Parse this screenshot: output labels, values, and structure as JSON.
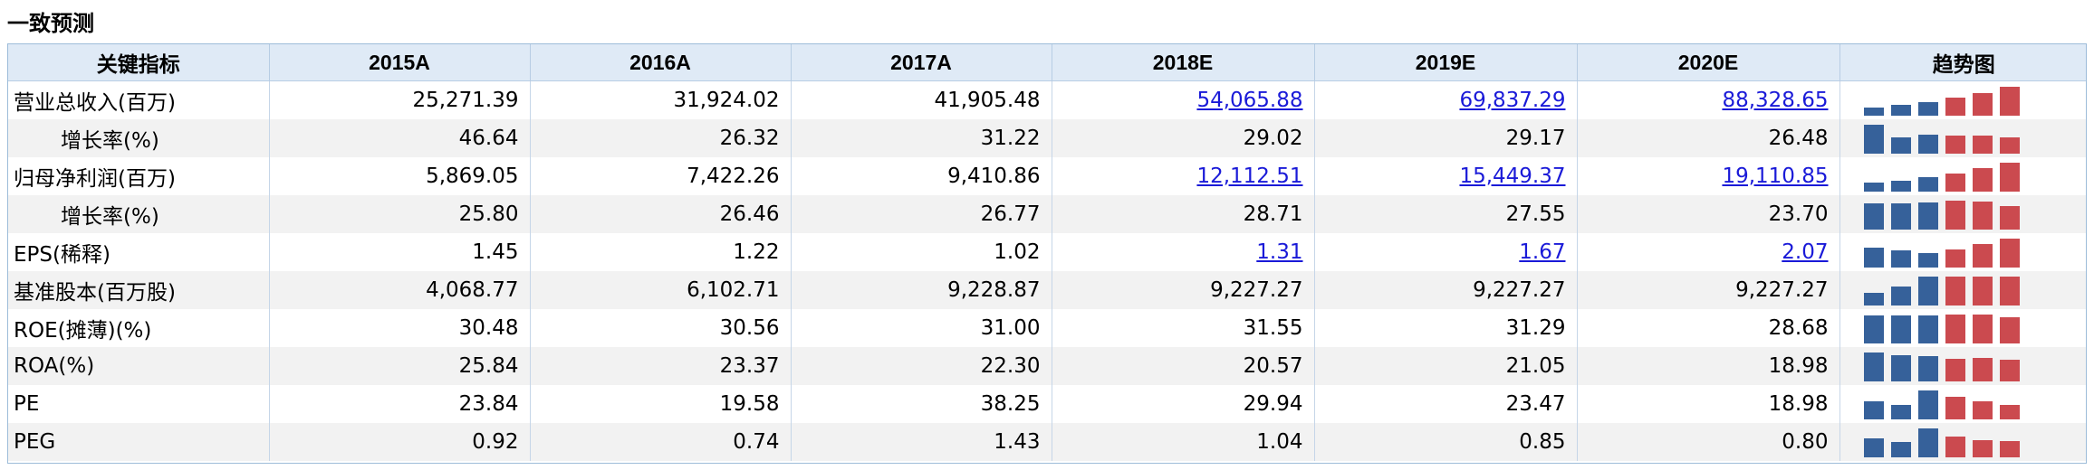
{
  "title": "一致预测",
  "columns": [
    "关键指标",
    "2015A",
    "2016A",
    "2017A",
    "2018E",
    "2019E",
    "2020E",
    "趋势图"
  ],
  "colors": {
    "actual": "#36619a",
    "estimate": "#cb4a4f",
    "header_bg": "#dfeaf6",
    "alt_row": "#f2f2f2",
    "link": "#1a1ad8"
  },
  "rows": [
    {
      "label": "营业总收入(百万)",
      "indent": false,
      "values": [
        "25,271.39",
        "31,924.02",
        "41,905.48",
        "54,065.88",
        "69,837.29",
        "88,328.65"
      ],
      "links": [
        false,
        false,
        false,
        true,
        true,
        true
      ],
      "trend": [
        25271.39,
        31924.02,
        41905.48,
        54065.88,
        69837.29,
        88328.65
      ]
    },
    {
      "label": "增长率(%)",
      "indent": true,
      "values": [
        "46.64",
        "26.32",
        "31.22",
        "29.02",
        "29.17",
        "26.48"
      ],
      "links": [
        false,
        false,
        false,
        false,
        false,
        false
      ],
      "trend": [
        46.64,
        26.32,
        31.22,
        29.02,
        29.17,
        26.48
      ]
    },
    {
      "label": "归母净利润(百万)",
      "indent": false,
      "values": [
        "5,869.05",
        "7,422.26",
        "9,410.86",
        "12,112.51",
        "15,449.37",
        "19,110.85"
      ],
      "links": [
        false,
        false,
        false,
        true,
        true,
        true
      ],
      "trend": [
        5869.05,
        7422.26,
        9410.86,
        12112.51,
        15449.37,
        19110.85
      ]
    },
    {
      "label": "增长率(%)",
      "indent": true,
      "values": [
        "25.80",
        "26.46",
        "26.77",
        "28.71",
        "27.55",
        "23.70"
      ],
      "links": [
        false,
        false,
        false,
        false,
        false,
        false
      ],
      "trend": [
        25.8,
        26.46,
        26.77,
        28.71,
        27.55,
        23.7
      ]
    },
    {
      "label": "EPS(稀释)",
      "indent": false,
      "values": [
        "1.45",
        "1.22",
        "1.02",
        "1.31",
        "1.67",
        "2.07"
      ],
      "links": [
        false,
        false,
        false,
        true,
        true,
        true
      ],
      "trend": [
        1.45,
        1.22,
        1.02,
        1.31,
        1.67,
        2.07
      ]
    },
    {
      "label": "基准股本(百万股)",
      "indent": false,
      "values": [
        "4,068.77",
        "6,102.71",
        "9,228.87",
        "9,227.27",
        "9,227.27",
        "9,227.27"
      ],
      "links": [
        false,
        false,
        false,
        false,
        false,
        false
      ],
      "trend": [
        4068.77,
        6102.71,
        9228.87,
        9227.27,
        9227.27,
        9227.27
      ]
    },
    {
      "label": "ROE(摊薄)(%)",
      "indent": false,
      "values": [
        "30.48",
        "30.56",
        "31.00",
        "31.55",
        "31.29",
        "28.68"
      ],
      "links": [
        false,
        false,
        false,
        false,
        false,
        false
      ],
      "trend": [
        30.48,
        30.56,
        31.0,
        31.55,
        31.29,
        28.68
      ]
    },
    {
      "label": "ROA(%)",
      "indent": false,
      "values": [
        "25.84",
        "23.37",
        "22.30",
        "20.57",
        "21.05",
        "18.98"
      ],
      "links": [
        false,
        false,
        false,
        false,
        false,
        false
      ],
      "trend": [
        25.84,
        23.37,
        22.3,
        20.57,
        21.05,
        18.98
      ]
    },
    {
      "label": "PE",
      "indent": false,
      "values": [
        "23.84",
        "19.58",
        "38.25",
        "29.94",
        "23.47",
        "18.98"
      ],
      "links": [
        false,
        false,
        false,
        false,
        false,
        false
      ],
      "trend": [
        23.84,
        19.58,
        38.25,
        29.94,
        23.47,
        18.98
      ]
    },
    {
      "label": "PEG",
      "indent": false,
      "values": [
        "0.92",
        "0.74",
        "1.43",
        "1.04",
        "0.85",
        "0.80"
      ],
      "links": [
        false,
        false,
        false,
        false,
        false,
        false
      ],
      "trend": [
        0.92,
        0.74,
        1.43,
        1.04,
        0.85,
        0.8
      ]
    }
  ]
}
